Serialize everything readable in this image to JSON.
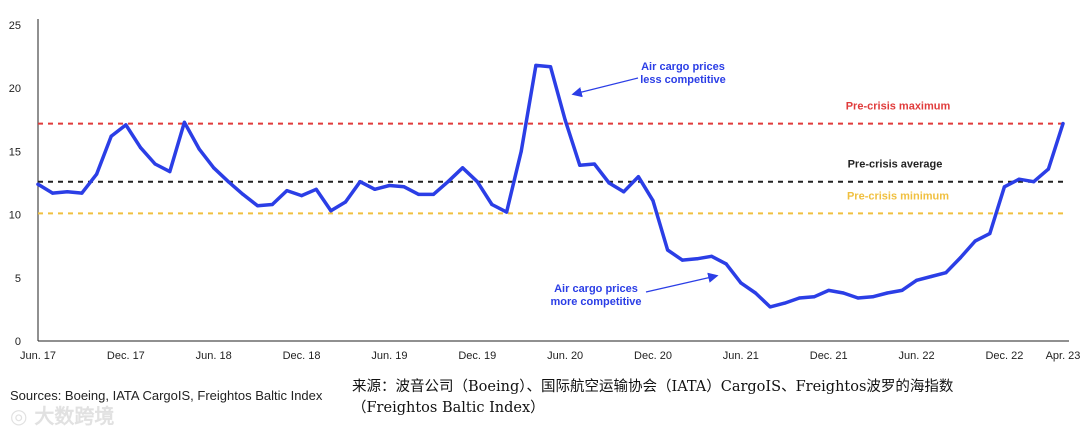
{
  "chart_data": {
    "type": "line",
    "title": "",
    "xlabel": "",
    "ylabel": "",
    "ylim": [
      0,
      25
    ],
    "y_ticks": [
      0,
      5,
      10,
      15,
      20,
      25
    ],
    "x_ticks": [
      "Jun. 17",
      "Dec. 17",
      "Jun. 18",
      "Dec. 18",
      "Jun. 19",
      "Dec. 19",
      "Jun. 20",
      "Dec. 20",
      "Jun. 21",
      "Dec. 21",
      "Jun. 22",
      "Dec. 22",
      "Apr. 23"
    ],
    "x_tick_month_index": [
      0,
      6,
      12,
      18,
      24,
      30,
      36,
      42,
      48,
      54,
      60,
      66,
      70
    ],
    "grid": false,
    "series": [
      {
        "name": "",
        "color": "#2b3ee6",
        "month_index": [
          0,
          1,
          2,
          3,
          4,
          5,
          6,
          7,
          8,
          9,
          10,
          11,
          12,
          13,
          14,
          15,
          16,
          17,
          18,
          19,
          20,
          21,
          22,
          23,
          24,
          25,
          26,
          27,
          28,
          29,
          30,
          31,
          32,
          33,
          34,
          35,
          36,
          37,
          38,
          39,
          40,
          41,
          42,
          43,
          44,
          45,
          46,
          47,
          48,
          49,
          50,
          51,
          52,
          53,
          54,
          55,
          56,
          57,
          58,
          59,
          60,
          61,
          62,
          63,
          64,
          65,
          66,
          67,
          68,
          69,
          70
        ],
        "values": [
          12.4,
          11.7,
          11.8,
          11.7,
          13.2,
          16.2,
          17.1,
          15.3,
          14.0,
          13.4,
          17.3,
          15.2,
          13.7,
          12.6,
          11.6,
          10.7,
          10.8,
          11.9,
          11.5,
          12.0,
          10.3,
          11.0,
          12.6,
          12.0,
          12.3,
          12.2,
          11.6,
          11.6,
          12.6,
          13.7,
          12.6,
          10.8,
          10.2,
          15.0,
          21.8,
          21.7,
          17.5,
          13.9,
          14.0,
          12.5,
          11.8,
          13.0,
          11.1,
          7.2,
          6.4,
          6.5,
          6.7,
          6.1,
          4.6,
          3.8,
          2.7,
          3.0,
          3.4,
          3.5,
          4.0,
          3.8,
          3.4,
          3.5,
          3.8,
          4.0,
          4.8,
          5.1,
          5.4,
          6.6,
          7.9,
          8.5,
          12.2,
          12.8,
          12.6,
          13.6,
          17.2
        ]
      }
    ],
    "reference_lines": [
      {
        "label": "Pre-crisis maximum",
        "value": 17.2,
        "color": "#e03b3b"
      },
      {
        "label": "Pre-crisis average",
        "value": 12.6,
        "color": "#222222"
      },
      {
        "label": "Pre-crisis minimum",
        "value": 10.1,
        "color": "#f0c040"
      }
    ],
    "annotations": [
      {
        "lines": [
          "Air cargo prices",
          "less competitive"
        ],
        "color": "#2b3ee6"
      },
      {
        "lines": [
          "Air cargo prices",
          "more competitive"
        ],
        "color": "#2b3ee6"
      }
    ]
  },
  "source_text": "Sources: Boeing, IATA CargoIS, Freightos Baltic Index",
  "caption_cn_line1": "来源：波音公司（Boeing）、国际航空运输协会（IATA）CargoIS、Freightos波罗的海指数",
  "caption_cn_line2": "（Freightos Baltic Index）",
  "watermark_text": "大数跨境"
}
